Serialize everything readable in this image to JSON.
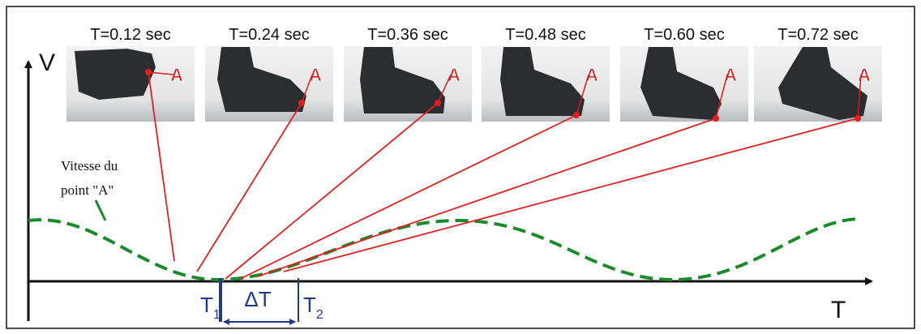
{
  "frames": [
    {
      "label": "T=0.12 sec"
    },
    {
      "label": "T=0.24 sec"
    },
    {
      "label": "T=0.36 sec"
    },
    {
      "label": "T=0.48 sec"
    },
    {
      "label": "T=0.60 sec"
    },
    {
      "label": "T=0.72 sec"
    }
  ],
  "point_label": "A",
  "axes": {
    "y_label": "V",
    "x_label": "T"
  },
  "annotation": [
    "Vitesse du",
    "point \"A\""
  ],
  "markers": {
    "t1": {
      "base": "T",
      "sub": "1"
    },
    "delta": "ΔT",
    "t2": {
      "base": "T",
      "sub": "2"
    }
  }
}
